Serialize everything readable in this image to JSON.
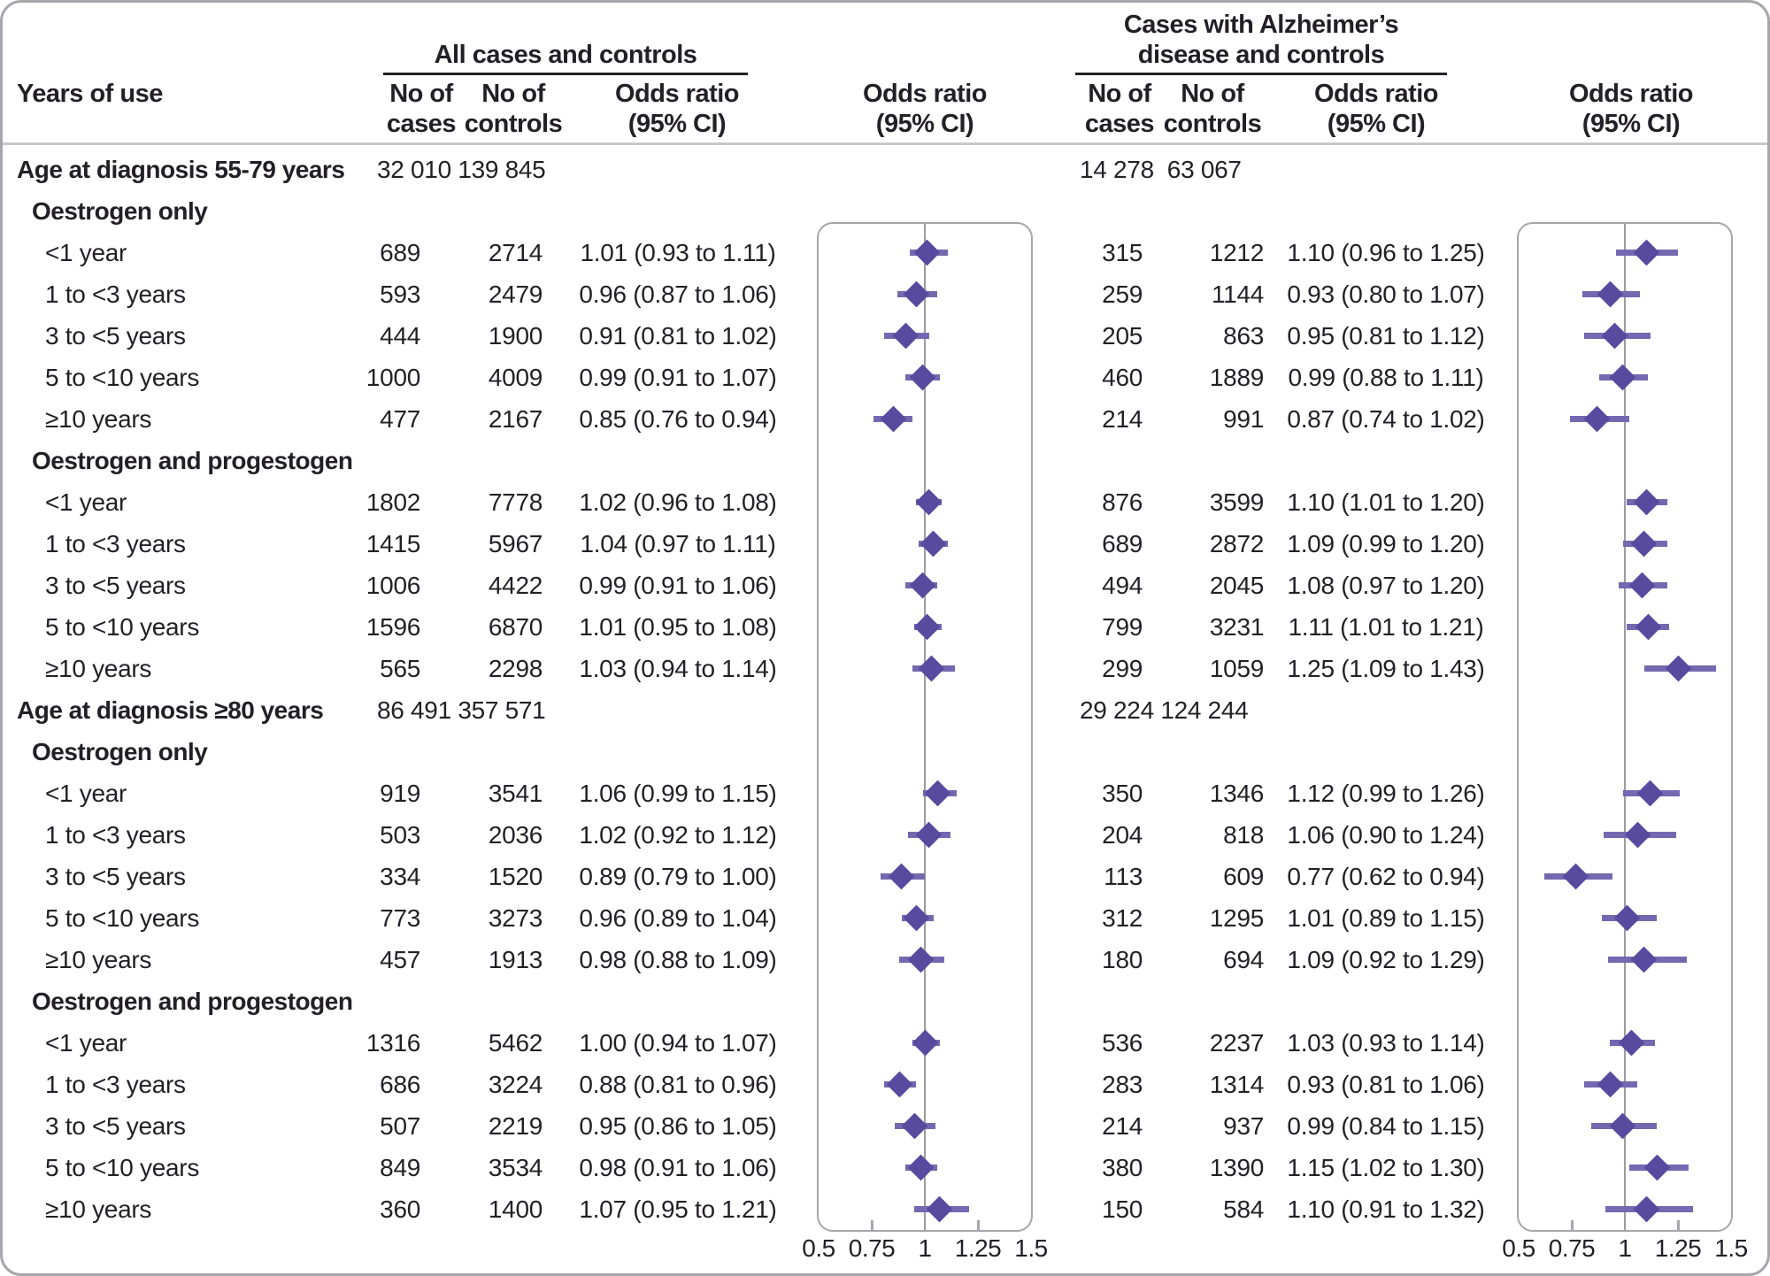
{
  "header": {
    "years_of_use": "Years of use",
    "group_left": "All cases and controls",
    "group_right": "Cases with Alzheimer’s\ndisease and controls",
    "no_of_cases": "No of\ncases",
    "no_of_controls": "No of\ncontrols",
    "odds_ratio": "Odds ratio\n(95% CI)"
  },
  "axis": {
    "labels": [
      "0.5",
      "0.75",
      "1",
      "1.25",
      "1.5"
    ],
    "values": [
      0.5,
      0.75,
      1,
      1.25,
      1.5
    ],
    "tick_marks": [
      0.75,
      1.25
    ],
    "min": 0.5,
    "max": 1.5
  },
  "colors": {
    "diamond": "#584a9e",
    "ci_line": "#7468b0",
    "frame": "#a6a6ac",
    "refline": "#9b9ba1",
    "separator": "#c8c8cc",
    "text": "#231f26"
  },
  "rows": [
    {
      "type": "section",
      "label": "Age at diagnosis 55-79 years",
      "left_counts": "32 010 139 845",
      "right_counts": "14 278  63 067"
    },
    {
      "type": "subsection",
      "label": "Oestrogen only"
    },
    {
      "type": "data",
      "label": "<1 year",
      "left": {
        "cases": "689",
        "controls": "2714",
        "or_text": "1.01 (0.93 to 1.11)",
        "or": 1.01,
        "lo": 0.93,
        "hi": 1.11
      },
      "right": {
        "cases": "315",
        "controls": "1212",
        "or_text": "1.10 (0.96 to 1.25)",
        "or": 1.1,
        "lo": 0.96,
        "hi": 1.25
      }
    },
    {
      "type": "data",
      "label": "1 to <3 years",
      "left": {
        "cases": "593",
        "controls": "2479",
        "or_text": "0.96 (0.87 to 1.06)",
        "or": 0.96,
        "lo": 0.87,
        "hi": 1.06
      },
      "right": {
        "cases": "259",
        "controls": "1144",
        "or_text": "0.93 (0.80 to 1.07)",
        "or": 0.93,
        "lo": 0.8,
        "hi": 1.07
      }
    },
    {
      "type": "data",
      "label": "3 to <5 years",
      "left": {
        "cases": "444",
        "controls": "1900",
        "or_text": "0.91 (0.81 to 1.02)",
        "or": 0.91,
        "lo": 0.81,
        "hi": 1.02
      },
      "right": {
        "cases": "205",
        "controls": "863",
        "or_text": "0.95 (0.81 to 1.12)",
        "or": 0.95,
        "lo": 0.81,
        "hi": 1.12
      }
    },
    {
      "type": "data",
      "label": "5 to <10 years",
      "left": {
        "cases": "1000",
        "controls": "4009",
        "or_text": "0.99 (0.91 to 1.07)",
        "or": 0.99,
        "lo": 0.91,
        "hi": 1.07
      },
      "right": {
        "cases": "460",
        "controls": "1889",
        "or_text": "0.99 (0.88 to 1.11)",
        "or": 0.99,
        "lo": 0.88,
        "hi": 1.11
      }
    },
    {
      "type": "data",
      "label": "≥10 years",
      "left": {
        "cases": "477",
        "controls": "2167",
        "or_text": "0.85 (0.76 to 0.94)",
        "or": 0.85,
        "lo": 0.76,
        "hi": 0.94
      },
      "right": {
        "cases": "214",
        "controls": "991",
        "or_text": "0.87 (0.74 to 1.02)",
        "or": 0.87,
        "lo": 0.74,
        "hi": 1.02
      }
    },
    {
      "type": "subsection",
      "label": "Oestrogen and progestogen"
    },
    {
      "type": "data",
      "label": "<1 year",
      "left": {
        "cases": "1802",
        "controls": "7778",
        "or_text": "1.02 (0.96 to 1.08)",
        "or": 1.02,
        "lo": 0.96,
        "hi": 1.08
      },
      "right": {
        "cases": "876",
        "controls": "3599",
        "or_text": "1.10 (1.01 to 1.20)",
        "or": 1.1,
        "lo": 1.01,
        "hi": 1.2
      }
    },
    {
      "type": "data",
      "label": "1 to <3 years",
      "left": {
        "cases": "1415",
        "controls": "5967",
        "or_text": "1.04 (0.97 to 1.11)",
        "or": 1.04,
        "lo": 0.97,
        "hi": 1.11
      },
      "right": {
        "cases": "689",
        "controls": "2872",
        "or_text": "1.09 (0.99 to 1.20)",
        "or": 1.09,
        "lo": 0.99,
        "hi": 1.2
      }
    },
    {
      "type": "data",
      "label": "3 to <5 years",
      "left": {
        "cases": "1006",
        "controls": "4422",
        "or_text": "0.99 (0.91 to 1.06)",
        "or": 0.99,
        "lo": 0.91,
        "hi": 1.06
      },
      "right": {
        "cases": "494",
        "controls": "2045",
        "or_text": "1.08 (0.97 to 1.20)",
        "or": 1.08,
        "lo": 0.97,
        "hi": 1.2
      }
    },
    {
      "type": "data",
      "label": "5 to <10 years",
      "left": {
        "cases": "1596",
        "controls": "6870",
        "or_text": "1.01 (0.95 to 1.08)",
        "or": 1.01,
        "lo": 0.95,
        "hi": 1.08
      },
      "right": {
        "cases": "799",
        "controls": "3231",
        "or_text": "1.11 (1.01 to 1.21)",
        "or": 1.11,
        "lo": 1.01,
        "hi": 1.21
      }
    },
    {
      "type": "data",
      "label": "≥10 years",
      "left": {
        "cases": "565",
        "controls": "2298",
        "or_text": "1.03 (0.94 to 1.14)",
        "or": 1.03,
        "lo": 0.94,
        "hi": 1.14
      },
      "right": {
        "cases": "299",
        "controls": "1059",
        "or_text": "1.25 (1.09 to 1.43)",
        "or": 1.25,
        "lo": 1.09,
        "hi": 1.43
      }
    },
    {
      "type": "section",
      "label": "Age at diagnosis ≥80 years",
      "left_counts": "86 491 357 571",
      "right_counts": "29 224 124 244"
    },
    {
      "type": "subsection",
      "label": "Oestrogen only"
    },
    {
      "type": "data",
      "label": "<1 year",
      "left": {
        "cases": "919",
        "controls": "3541",
        "or_text": "1.06 (0.99 to 1.15)",
        "or": 1.06,
        "lo": 0.99,
        "hi": 1.15
      },
      "right": {
        "cases": "350",
        "controls": "1346",
        "or_text": "1.12 (0.99 to 1.26)",
        "or": 1.12,
        "lo": 0.99,
        "hi": 1.26
      }
    },
    {
      "type": "data",
      "label": "1 to <3 years",
      "left": {
        "cases": "503",
        "controls": "2036",
        "or_text": "1.02 (0.92 to 1.12)",
        "or": 1.02,
        "lo": 0.92,
        "hi": 1.12
      },
      "right": {
        "cases": "204",
        "controls": "818",
        "or_text": "1.06 (0.90 to 1.24)",
        "or": 1.06,
        "lo": 0.9,
        "hi": 1.24
      }
    },
    {
      "type": "data",
      "label": "3 to <5 years",
      "left": {
        "cases": "334",
        "controls": "1520",
        "or_text": "0.89 (0.79 to 1.00)",
        "or": 0.89,
        "lo": 0.79,
        "hi": 1.0
      },
      "right": {
        "cases": "113",
        "controls": "609",
        "or_text": "0.77 (0.62 to 0.94)",
        "or": 0.77,
        "lo": 0.62,
        "hi": 0.94
      }
    },
    {
      "type": "data",
      "label": "5 to <10 years",
      "left": {
        "cases": "773",
        "controls": "3273",
        "or_text": "0.96 (0.89 to 1.04)",
        "or": 0.96,
        "lo": 0.89,
        "hi": 1.04
      },
      "right": {
        "cases": "312",
        "controls": "1295",
        "or_text": "1.01 (0.89 to 1.15)",
        "or": 1.01,
        "lo": 0.89,
        "hi": 1.15
      }
    },
    {
      "type": "data",
      "label": "≥10 years",
      "left": {
        "cases": "457",
        "controls": "1913",
        "or_text": "0.98 (0.88 to 1.09)",
        "or": 0.98,
        "lo": 0.88,
        "hi": 1.09
      },
      "right": {
        "cases": "180",
        "controls": "694",
        "or_text": "1.09 (0.92 to 1.29)",
        "or": 1.09,
        "lo": 0.92,
        "hi": 1.29
      }
    },
    {
      "type": "subsection",
      "label": "Oestrogen and progestogen"
    },
    {
      "type": "data",
      "label": "<1 year",
      "left": {
        "cases": "1316",
        "controls": "5462",
        "or_text": "1.00 (0.94 to 1.07)",
        "or": 1.0,
        "lo": 0.94,
        "hi": 1.07
      },
      "right": {
        "cases": "536",
        "controls": "2237",
        "or_text": "1.03 (0.93 to 1.14)",
        "or": 1.03,
        "lo": 0.93,
        "hi": 1.14
      }
    },
    {
      "type": "data",
      "label": "1 to <3 years",
      "left": {
        "cases": "686",
        "controls": "3224",
        "or_text": "0.88 (0.81 to 0.96)",
        "or": 0.88,
        "lo": 0.81,
        "hi": 0.96
      },
      "right": {
        "cases": "283",
        "controls": "1314",
        "or_text": "0.93 (0.81 to 1.06)",
        "or": 0.93,
        "lo": 0.81,
        "hi": 1.06
      }
    },
    {
      "type": "data",
      "label": "3 to <5 years",
      "left": {
        "cases": "507",
        "controls": "2219",
        "or_text": "0.95 (0.86 to 1.05)",
        "or": 0.95,
        "lo": 0.86,
        "hi": 1.05
      },
      "right": {
        "cases": "214",
        "controls": "937",
        "or_text": "0.99 (0.84 to 1.15)",
        "or": 0.99,
        "lo": 0.84,
        "hi": 1.15
      }
    },
    {
      "type": "data",
      "label": "5 to <10 years",
      "left": {
        "cases": "849",
        "controls": "3534",
        "or_text": "0.98 (0.91 to 1.06)",
        "or": 0.98,
        "lo": 0.91,
        "hi": 1.06
      },
      "right": {
        "cases": "380",
        "controls": "1390",
        "or_text": "1.15 (1.02 to 1.30)",
        "or": 1.15,
        "lo": 1.02,
        "hi": 1.3
      }
    },
    {
      "type": "data",
      "label": "≥10 years",
      "left": {
        "cases": "360",
        "controls": "1400",
        "or_text": "1.07 (0.95 to 1.21)",
        "or": 1.07,
        "lo": 0.95,
        "hi": 1.21
      },
      "right": {
        "cases": "150",
        "controls": "584",
        "or_text": "1.10 (0.91 to 1.32)",
        "or": 1.1,
        "lo": 0.91,
        "hi": 1.32
      }
    }
  ],
  "chart_data": [
    {
      "type": "forest",
      "panel": "All cases and controls",
      "xlabel": "Odds ratio (95% CI)",
      "xlim": [
        0.5,
        1.5
      ],
      "x_ticks": [
        0.5,
        0.75,
        1,
        1.25,
        1.5
      ],
      "reference_line": 1,
      "sections": [
        {
          "section": "Age at diagnosis 55-79 years",
          "cases": "32 010",
          "controls": "139 845",
          "subgroups": [
            {
              "name": "Oestrogen only",
              "points": [
                [
                  "<1 year",
                  1.01,
                  0.93,
                  1.11
                ],
                [
                  "1 to <3 years",
                  0.96,
                  0.87,
                  1.06
                ],
                [
                  "3 to <5 years",
                  0.91,
                  0.81,
                  1.02
                ],
                [
                  "5 to <10 years",
                  0.99,
                  0.91,
                  1.07
                ],
                [
                  "≥10 years",
                  0.85,
                  0.76,
                  0.94
                ]
              ]
            },
            {
              "name": "Oestrogen and progestogen",
              "points": [
                [
                  "<1 year",
                  1.02,
                  0.96,
                  1.08
                ],
                [
                  "1 to <3 years",
                  1.04,
                  0.97,
                  1.11
                ],
                [
                  "3 to <5 years",
                  0.99,
                  0.91,
                  1.06
                ],
                [
                  "5 to <10 years",
                  1.01,
                  0.95,
                  1.08
                ],
                [
                  "≥10 years",
                  1.03,
                  0.94,
                  1.14
                ]
              ]
            }
          ]
        },
        {
          "section": "Age at diagnosis ≥80 years",
          "cases": "86 491",
          "controls": "357 571",
          "subgroups": [
            {
              "name": "Oestrogen only",
              "points": [
                [
                  "<1 year",
                  1.06,
                  0.99,
                  1.15
                ],
                [
                  "1 to <3 years",
                  1.02,
                  0.92,
                  1.12
                ],
                [
                  "3 to <5 years",
                  0.89,
                  0.79,
                  1.0
                ],
                [
                  "5 to <10 years",
                  0.96,
                  0.89,
                  1.04
                ],
                [
                  "≥10 years",
                  0.98,
                  0.88,
                  1.09
                ]
              ]
            },
            {
              "name": "Oestrogen and progestogen",
              "points": [
                [
                  "<1 year",
                  1.0,
                  0.94,
                  1.07
                ],
                [
                  "1 to <3 years",
                  0.88,
                  0.81,
                  0.96
                ],
                [
                  "3 to <5 years",
                  0.95,
                  0.86,
                  1.05
                ],
                [
                  "5 to <10 years",
                  0.98,
                  0.91,
                  1.06
                ],
                [
                  "≥10 years",
                  1.07,
                  0.95,
                  1.21
                ]
              ]
            }
          ]
        }
      ]
    },
    {
      "type": "forest",
      "panel": "Cases with Alzheimer’s disease and controls",
      "xlabel": "Odds ratio (95% CI)",
      "xlim": [
        0.5,
        1.5
      ],
      "x_ticks": [
        0.5,
        0.75,
        1,
        1.25,
        1.5
      ],
      "reference_line": 1,
      "sections": [
        {
          "section": "Age at diagnosis 55-79 years",
          "cases": "14 278",
          "controls": "63 067",
          "subgroups": [
            {
              "name": "Oestrogen only",
              "points": [
                [
                  "<1 year",
                  1.1,
                  0.96,
                  1.25
                ],
                [
                  "1 to <3 years",
                  0.93,
                  0.8,
                  1.07
                ],
                [
                  "3 to <5 years",
                  0.95,
                  0.81,
                  1.12
                ],
                [
                  "5 to <10 years",
                  0.99,
                  0.88,
                  1.11
                ],
                [
                  "≥10 years",
                  0.87,
                  0.74,
                  1.02
                ]
              ]
            },
            {
              "name": "Oestrogen and progestogen",
              "points": [
                [
                  "<1 year",
                  1.1,
                  1.01,
                  1.2
                ],
                [
                  "1 to <3 years",
                  1.09,
                  0.99,
                  1.2
                ],
                [
                  "3 to <5 years",
                  1.08,
                  0.97,
                  1.2
                ],
                [
                  "5 to <10 years",
                  1.11,
                  1.01,
                  1.21
                ],
                [
                  "≥10 years",
                  1.25,
                  1.09,
                  1.43
                ]
              ]
            }
          ]
        },
        {
          "section": "Age at diagnosis ≥80 years",
          "cases": "29 224",
          "controls": "124 244",
          "subgroups": [
            {
              "name": "Oestrogen only",
              "points": [
                [
                  "<1 year",
                  1.12,
                  0.99,
                  1.26
                ],
                [
                  "1 to <3 years",
                  1.06,
                  0.9,
                  1.24
                ],
                [
                  "3 to <5 years",
                  0.77,
                  0.62,
                  0.94
                ],
                [
                  "5 to <10 years",
                  1.01,
                  0.89,
                  1.15
                ],
                [
                  "≥10 years",
                  1.09,
                  0.92,
                  1.29
                ]
              ]
            },
            {
              "name": "Oestrogen and progestogen",
              "points": [
                [
                  "<1 year",
                  1.03,
                  0.93,
                  1.14
                ],
                [
                  "1 to <3 years",
                  0.93,
                  0.81,
                  1.06
                ],
                [
                  "3 to <5 years",
                  0.99,
                  0.84,
                  1.15
                ],
                [
                  "5 to <10 years",
                  1.15,
                  1.02,
                  1.3
                ],
                [
                  "≥10 years",
                  1.1,
                  0.91,
                  1.32
                ]
              ]
            }
          ]
        }
      ]
    }
  ]
}
